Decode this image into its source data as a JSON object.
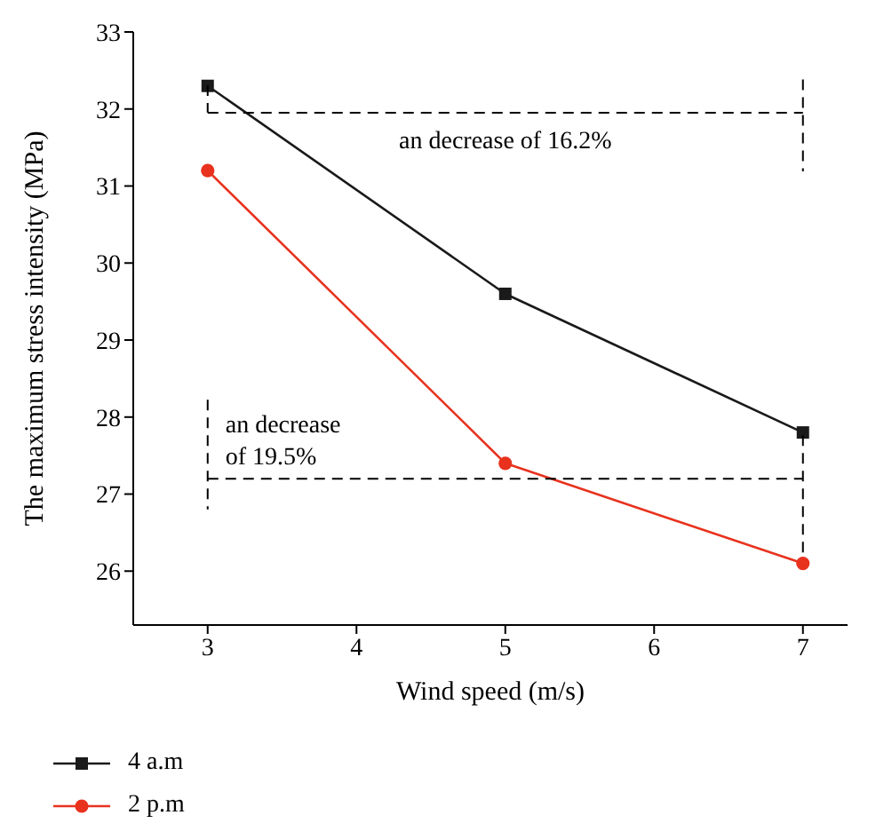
{
  "chart_data": {
    "type": "line",
    "xlabel": "Wind speed (m/s)",
    "ylabel": "The maximum stress intensity (MPa)",
    "x": [
      3,
      5,
      7
    ],
    "series": [
      {
        "name": "4 a.m",
        "color": "#1a1a1a",
        "values": [
          32.3,
          29.6,
          27.8
        ],
        "marker": "square"
      },
      {
        "name": "2 p.m",
        "color": "#e8321e",
        "values": [
          31.2,
          27.4,
          26.1
        ],
        "marker": "circle"
      }
    ],
    "xlim": [
      2.5,
      7.3
    ],
    "xticks": [
      3,
      4,
      5,
      6,
      7
    ],
    "ylim": [
      25.3,
      33
    ],
    "yticks": [
      26,
      27,
      28,
      29,
      30,
      31,
      32,
      33
    ],
    "ref_lines": [
      {
        "axis": "y",
        "value": 31.95,
        "label": "an decrease of 16.2%",
        "line_style": "dashed",
        "color": "#000000"
      },
      {
        "axis": "y",
        "value": 27.2,
        "label": "an decrease\nof 19.5%",
        "line_style": "dashed",
        "color": "#000000"
      }
    ],
    "legend": "bottom",
    "grid": false
  }
}
